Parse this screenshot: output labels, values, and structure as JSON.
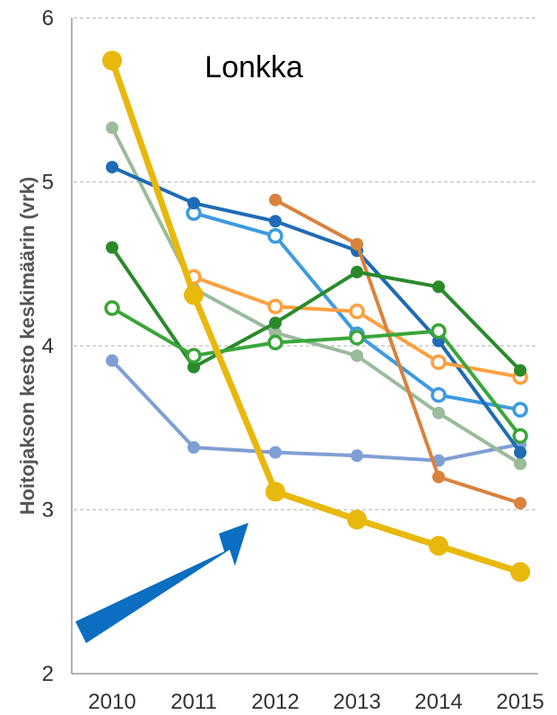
{
  "chart_data": {
    "type": "line",
    "title": "Lonkka",
    "ylabel": "Hoitojakson kesto keskimäärin (vrk)",
    "xlabel": "",
    "x": [
      "2010",
      "2011",
      "2012",
      "2013",
      "2014",
      "2015"
    ],
    "ylim": [
      2,
      6
    ],
    "yticks": [
      2,
      3,
      4,
      5,
      6
    ],
    "grid": "horizontal dashed at 3, 4, 5, 6",
    "series": [
      {
        "color": "#7f9fd4",
        "marker": "filled",
        "values": [
          3.91,
          3.38,
          3.35,
          3.33,
          3.3,
          3.4
        ]
      },
      {
        "color": "#9bbb9b",
        "marker": "filled",
        "values": [
          5.33,
          4.35,
          4.08,
          3.94,
          3.59,
          3.28
        ]
      },
      {
        "color": "#3d9be0",
        "marker": "open",
        "values": [
          null,
          4.81,
          4.67,
          4.07,
          3.7,
          3.61
        ]
      },
      {
        "color": "#1f6bb5",
        "marker": "filled",
        "values": [
          5.09,
          4.87,
          4.76,
          4.58,
          4.03,
          3.35
        ]
      },
      {
        "color": "#ffa040",
        "marker": "open",
        "values": [
          null,
          4.42,
          4.24,
          4.21,
          3.9,
          3.81
        ]
      },
      {
        "color": "#d9823c",
        "marker": "filled",
        "values": [
          null,
          null,
          4.89,
          4.62,
          3.2,
          3.04
        ]
      },
      {
        "color": "#2a8a2a",
        "marker": "filled",
        "values": [
          4.6,
          3.87,
          4.14,
          4.45,
          4.36,
          3.85
        ]
      },
      {
        "color": "#3aa63a",
        "marker": "open",
        "values": [
          4.23,
          3.94,
          4.02,
          4.05,
          4.09,
          3.45
        ]
      },
      {
        "color": "#e8b80c",
        "marker": "filled",
        "highlight": true,
        "values": [
          5.74,
          4.31,
          3.11,
          2.94,
          2.78,
          2.62
        ]
      }
    ],
    "annotation": {
      "type": "arrow",
      "color": "#0b6ec0",
      "points_to": "2012"
    }
  }
}
